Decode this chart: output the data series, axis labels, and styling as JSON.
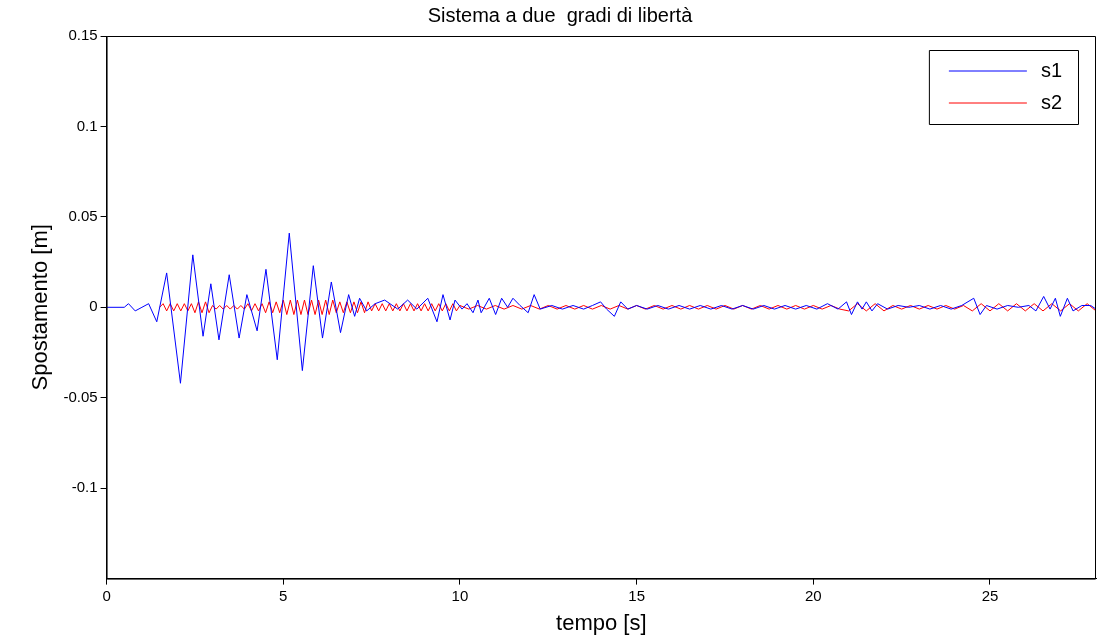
{
  "chart_data": {
    "type": "line",
    "title": "Sistema a due  gradi di libertà",
    "xlabel": "tempo [s]",
    "ylabel": "Spostamento [m]",
    "xlim": [
      0,
      28
    ],
    "xticks": [
      0,
      5,
      10,
      15,
      20,
      25
    ],
    "ylim": [
      -0.15,
      0.15
    ],
    "yticks": [
      -0.1,
      -0.05,
      0,
      0.05,
      0.1,
      0.15
    ],
    "grid": false,
    "legend": "top right",
    "marker": "none",
    "line_style": "solid",
    "series": [
      {
        "name": "s1",
        "color": "#0000ff",
        "x": [
          0,
          0.5,
          0.62,
          0.81,
          1.0,
          1.19,
          1.42,
          1.7,
          2.09,
          2.44,
          2.73,
          2.95,
          3.18,
          3.47,
          3.75,
          3.97,
          4.26,
          4.51,
          4.83,
          5.17,
          5.54,
          5.85,
          6.11,
          6.36,
          6.62,
          6.85,
          7.02,
          7.16,
          7.36,
          7.6,
          7.87,
          8.24,
          8.52,
          8.78,
          9.09,
          9.35,
          9.52,
          9.72,
          9.86,
          10.06,
          10.2,
          10.37,
          10.51,
          10.6,
          10.83,
          11.01,
          11.18,
          11.35,
          11.5,
          11.7,
          11.93,
          12.1,
          12.27,
          12.6,
          12.9,
          13.2,
          13.5,
          13.75,
          13.98,
          14.15,
          14.37,
          14.55,
          14.75,
          15.0,
          15.3,
          15.6,
          15.9,
          16.2,
          16.5,
          16.8,
          17.1,
          17.4,
          17.7,
          18.0,
          18.3,
          18.6,
          18.9,
          19.2,
          19.5,
          19.8,
          20.1,
          20.4,
          20.7,
          20.94,
          21.08,
          21.25,
          21.38,
          21.5,
          21.66,
          21.82,
          22.1,
          22.4,
          22.7,
          23.0,
          23.3,
          23.6,
          23.9,
          24.2,
          24.54,
          24.72,
          24.9,
          25.2,
          25.5,
          25.8,
          26.1,
          26.3,
          26.52,
          26.7,
          26.85,
          26.99,
          27.19,
          27.35,
          27.6,
          27.85,
          28
        ],
        "values": [
          0,
          0,
          0.002,
          -0.002,
          0,
          0.002,
          -0.008,
          0.019,
          -0.042,
          0.029,
          -0.016,
          0.013,
          -0.018,
          0.018,
          -0.017,
          0.007,
          -0.013,
          0.021,
          -0.029,
          0.041,
          -0.035,
          0.023,
          -0.017,
          0.014,
          -0.014,
          0.007,
          -0.005,
          0.005,
          -0.002,
          0.002,
          0.004,
          -0.001,
          0.004,
          -0.001,
          0.005,
          -0.008,
          0.007,
          -0.007,
          0.004,
          -0.001,
          0.002,
          -0.003,
          0.004,
          -0.003,
          0.005,
          -0.004,
          0.005,
          0,
          0.005,
          0.001,
          -0.003,
          0.007,
          -0.001,
          0.001,
          -0.001,
          0.001,
          -0.001,
          0.001,
          0.003,
          -0.001,
          -0.005,
          0.003,
          -0.001,
          0.001,
          -0.001,
          0.001,
          -0.001,
          0.001,
          -0.001,
          0.001,
          -0.001,
          0.001,
          -0.001,
          0.001,
          -0.001,
          0.001,
          -0.001,
          0.001,
          -0.001,
          0.001,
          -0.001,
          0.002,
          -0.001,
          0.003,
          -0.004,
          0.003,
          -0.001,
          0.003,
          -0.002,
          0.002,
          -0.001,
          0.001,
          0,
          0.001,
          -0.001,
          0.001,
          -0.001,
          0.001,
          0.005,
          -0.004,
          0.001,
          -0.001,
          0.001,
          0,
          0.001,
          -0.002,
          0.006,
          -0.001,
          0.005,
          -0.005,
          0.005,
          -0.002,
          0.001,
          0.001,
          -0.001
        ]
      },
      {
        "name": "s2",
        "color": "#ff0000",
        "x": [
          1.5,
          1.6,
          1.7,
          1.8,
          1.9,
          2.0,
          2.1,
          2.2,
          2.3,
          2.4,
          2.5,
          2.6,
          2.7,
          2.8,
          2.9,
          3.0,
          3.1,
          3.2,
          3.3,
          3.4,
          3.5,
          3.6,
          3.7,
          3.8,
          3.9,
          4.0,
          4.1,
          4.2,
          4.3,
          4.4,
          4.5,
          4.6,
          4.7,
          4.8,
          4.9,
          5.0,
          5.1,
          5.2,
          5.3,
          5.4,
          5.5,
          5.6,
          5.7,
          5.8,
          5.9,
          6.0,
          6.1,
          6.2,
          6.3,
          6.4,
          6.5,
          6.6,
          6.7,
          6.8,
          6.9,
          7.0,
          7.1,
          7.2,
          7.3,
          7.4,
          7.5,
          7.6,
          7.7,
          7.8,
          7.9,
          8.0,
          8.1,
          8.2,
          8.3,
          8.4,
          8.5,
          8.6,
          8.7,
          8.8,
          8.9,
          9.0,
          9.1,
          9.2,
          9.3,
          9.4,
          9.5,
          9.6,
          9.7,
          9.8,
          9.9,
          10.0,
          10.25,
          10.5,
          10.75,
          11.0,
          11.25,
          11.5,
          11.75,
          12.0,
          12.25,
          12.5,
          12.75,
          13.0,
          13.25,
          13.5,
          13.75,
          14.0,
          14.25,
          14.5,
          14.75,
          15.0,
          15.25,
          15.5,
          15.75,
          16.0,
          16.25,
          16.5,
          16.75,
          17.0,
          17.25,
          17.5,
          17.75,
          18.0,
          18.25,
          18.5,
          18.75,
          19.0,
          19.25,
          19.5,
          19.75,
          20.0,
          20.25,
          20.5,
          20.75,
          21.0,
          21.25,
          21.5,
          21.75,
          22.0,
          22.25,
          22.5,
          22.75,
          23.0,
          23.25,
          23.5,
          23.75,
          24.0,
          24.25,
          24.5,
          24.75,
          25.0,
          25.25,
          25.5,
          25.75,
          26.0,
          26.25,
          26.5,
          26.75,
          27.0,
          27.25,
          27.5,
          27.75,
          28.0
        ],
        "values": [
          0,
          0.002,
          -0.002,
          0.002,
          -0.002,
          0.002,
          -0.002,
          0.002,
          -0.002,
          0.002,
          -0.003,
          0.003,
          -0.003,
          0.003,
          -0.003,
          0.001,
          -0.001,
          0.001,
          -0.001,
          0.001,
          -0.001,
          0.001,
          -0.001,
          0.001,
          -0.001,
          0.002,
          -0.002,
          0.002,
          -0.002,
          0.002,
          -0.003,
          0.003,
          -0.003,
          0.003,
          -0.003,
          0.004,
          -0.004,
          0.004,
          -0.004,
          0.004,
          -0.004,
          0.004,
          -0.004,
          0.004,
          -0.004,
          0.004,
          -0.004,
          0.004,
          -0.004,
          0.004,
          -0.003,
          0.003,
          -0.003,
          0.003,
          -0.003,
          0.003,
          -0.003,
          0.003,
          -0.003,
          0.003,
          -0.002,
          0.002,
          -0.002,
          0.002,
          -0.002,
          0.002,
          -0.002,
          0.002,
          -0.002,
          0.002,
          -0.002,
          0.002,
          -0.002,
          0.002,
          -0.002,
          0.002,
          -0.002,
          0.002,
          -0.002,
          0.002,
          -0.002,
          0.002,
          -0.002,
          0.002,
          -0.002,
          0.001,
          -0.001,
          0.001,
          -0.001,
          0.001,
          -0.001,
          0.001,
          -0.001,
          0.001,
          -0.001,
          0.001,
          -0.001,
          0.001,
          -0.001,
          0.001,
          -0.001,
          0.001,
          -0.001,
          0.001,
          -0.001,
          0.001,
          -0.001,
          0.001,
          -0.001,
          0.001,
          -0.001,
          0.001,
          -0.001,
          0.001,
          -0.001,
          0.001,
          -0.001,
          0.001,
          -0.001,
          0.001,
          -0.001,
          0.001,
          -0.001,
          0.001,
          -0.001,
          0.001,
          -0.001,
          0.001,
          -0.001,
          -0.002,
          0.002,
          -0.002,
          0.002,
          -0.002,
          0.001,
          -0.001,
          0.001,
          -0.001,
          0.001,
          -0.001,
          0.001,
          -0.001,
          0.001,
          -0.002,
          0.002,
          -0.002,
          0.002,
          -0.002,
          0.002,
          -0.002,
          0.002,
          -0.002,
          0.002,
          -0.002,
          0.002,
          -0.002,
          0.002,
          -0.002
        ]
      }
    ]
  }
}
